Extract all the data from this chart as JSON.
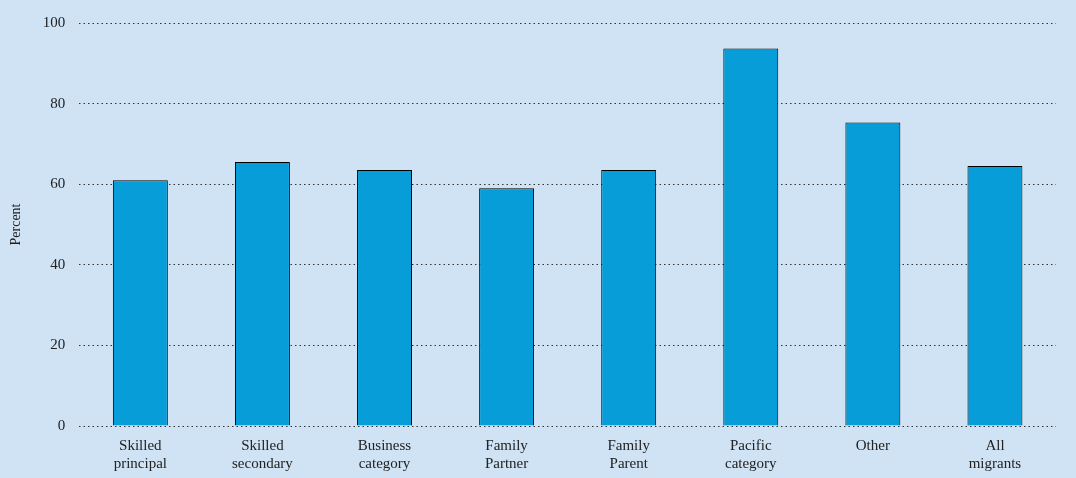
{
  "chart_data": {
    "type": "bar",
    "ylabel": "Percent",
    "categories": [
      "Skilled principal",
      "Skilled secondary",
      "Business category",
      "Family Partner",
      "Family Parent",
      "Pacific category",
      "Other",
      "All migrants"
    ],
    "values": [
      61,
      65.5,
      63.5,
      59,
      63.5,
      93.7,
      75.3,
      64.5
    ],
    "color": "#069dd8",
    "ylim": [
      0,
      100
    ],
    "yticks": [
      0,
      20,
      40,
      60,
      80,
      100
    ],
    "grid": "y",
    "legend": false
  }
}
